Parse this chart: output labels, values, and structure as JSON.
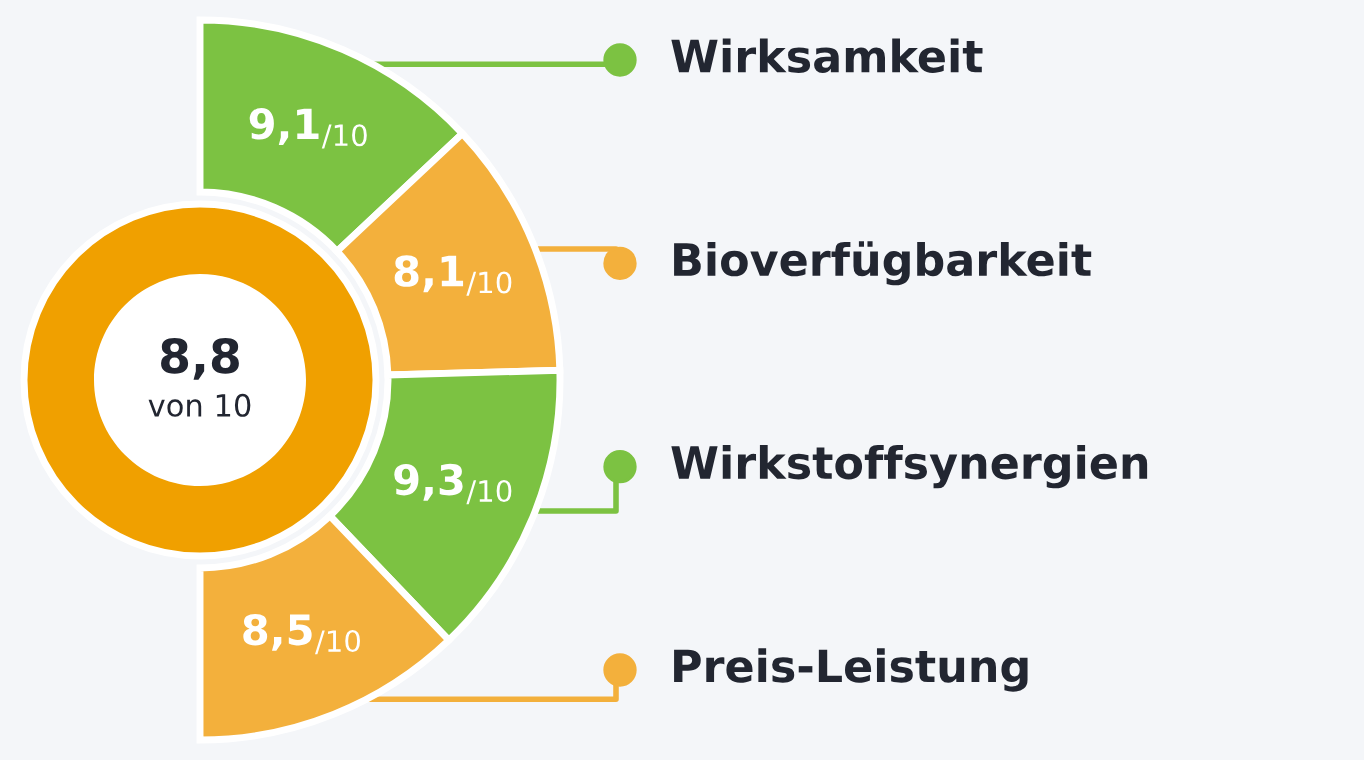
{
  "chart_data": {
    "type": "other",
    "categories": [
      "Wirksamkeit",
      "Bioverfügbarkeit",
      "Wirkstoffsynergien",
      "Preis-Leistung"
    ],
    "values": [
      9.1,
      8.1,
      9.3,
      8.5
    ],
    "value_labels": [
      "9,1$_{/10}$",
      "8,1$_{/10}$",
      "9,3$_{/10}$",
      "8,5$_{/10}$"
    ],
    "colors": [
      "#7cc242",
      "#f3b03c",
      "#7cc242",
      "#f3b03c"
    ],
    "annotations": [
      "8,8",
      "von 10"
    ]
  }
}
